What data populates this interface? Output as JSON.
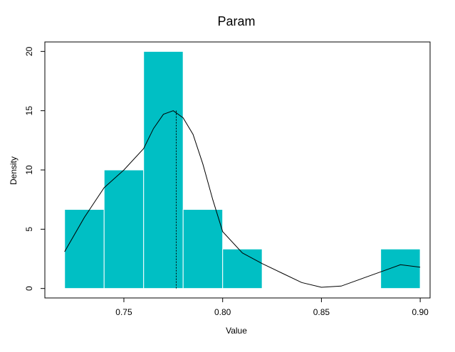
{
  "chart_data": {
    "type": "bar",
    "title": "Param",
    "xlabel": "Value",
    "ylabel": "Density",
    "xlim": [
      0.71,
      0.905
    ],
    "ylim": [
      -0.8,
      20.8
    ],
    "x_ticks": [
      0.75,
      0.8,
      0.85,
      0.9
    ],
    "x_tick_labels": [
      "0.75",
      "0.80",
      "0.85",
      "0.90"
    ],
    "y_ticks": [
      0,
      5,
      10,
      15,
      20
    ],
    "y_tick_labels": [
      "0",
      "5",
      "10",
      "15",
      "20"
    ],
    "bins": [
      {
        "x0": 0.72,
        "x1": 0.74,
        "density": 6.67
      },
      {
        "x0": 0.74,
        "x1": 0.76,
        "density": 10
      },
      {
        "x0": 0.76,
        "x1": 0.78,
        "density": 20
      },
      {
        "x0": 0.78,
        "x1": 0.8,
        "density": 6.67
      },
      {
        "x0": 0.8,
        "x1": 0.82,
        "density": 3.33
      },
      {
        "x0": 0.88,
        "x1": 0.9,
        "density": 3.33
      }
    ],
    "bar_color": "#00bfc4",
    "density_curve": [
      [
        0.72,
        3.1
      ],
      [
        0.73,
        6.0
      ],
      [
        0.74,
        8.5
      ],
      [
        0.75,
        10.0
      ],
      [
        0.76,
        11.8
      ],
      [
        0.765,
        13.5
      ],
      [
        0.77,
        14.7
      ],
      [
        0.775,
        15.0
      ],
      [
        0.78,
        14.4
      ],
      [
        0.785,
        13.0
      ],
      [
        0.79,
        10.5
      ],
      [
        0.795,
        7.5
      ],
      [
        0.8,
        4.8
      ],
      [
        0.81,
        3.0
      ],
      [
        0.82,
        2.1
      ],
      [
        0.83,
        1.3
      ],
      [
        0.84,
        0.5
      ],
      [
        0.85,
        0.1
      ],
      [
        0.86,
        0.2
      ],
      [
        0.87,
        0.8
      ],
      [
        0.88,
        1.4
      ],
      [
        0.89,
        2.0
      ],
      [
        0.9,
        1.8
      ]
    ],
    "mean_line": 0.7765,
    "grid": false
  }
}
